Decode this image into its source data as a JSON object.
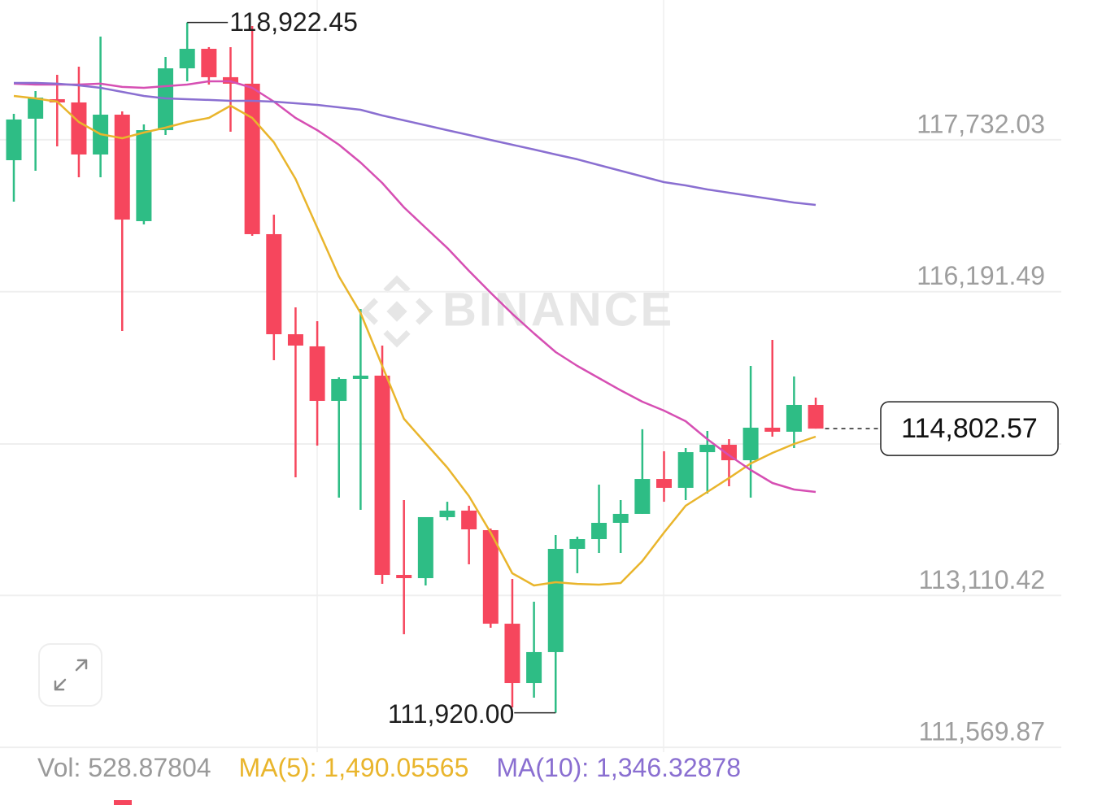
{
  "chart_data": {
    "type": "candlestick",
    "watermark": "BINANCE",
    "ylim": [
      111480,
      119150
    ],
    "yticks": [
      {
        "value": 117732.03,
        "label": "117,732.03"
      },
      {
        "value": 116191.49,
        "label": "116,191.49"
      },
      {
        "value": 113110.42,
        "label": "113,110.42"
      },
      {
        "value": 111569.87,
        "label": "111,569.87"
      }
    ],
    "grid": true,
    "up_color": "#2ebd85",
    "down_color": "#f6465d",
    "open": [
      117525,
      117946,
      118144,
      118111,
      117583,
      117987,
      116907,
      117830,
      118457,
      118655,
      118367,
      118301,
      116775,
      115760,
      115637,
      115084,
      115307,
      115340,
      113319,
      113286,
      113905,
      113971,
      113773,
      112824,
      112222,
      112536,
      113583,
      113682,
      113847,
      113938,
      114292,
      114202,
      114564,
      114639,
      114482,
      114812,
      114771,
      115043
    ],
    "high": [
      117995,
      118226,
      118391,
      118474,
      118779,
      118020,
      117888,
      118573,
      118922.45,
      118672,
      118672,
      118886,
      116973,
      116033,
      115892,
      115323,
      116016,
      115645,
      114078,
      113905,
      114061,
      114020,
      113789,
      113278,
      113047,
      113723,
      113707,
      114235,
      114078,
      114796,
      114573,
      114606,
      114779,
      114696,
      115439,
      115703,
      115332,
      115117
    ],
    "low": [
      117105,
      117418,
      117665,
      117352,
      117352,
      115793,
      116874,
      117781,
      118325,
      118292,
      117814,
      116758,
      115496,
      114309,
      114630,
      114103,
      113979,
      113228,
      112717,
      113212,
      113872,
      113426,
      112783,
      111975,
      112074,
      111920,
      113336,
      113542,
      113542,
      113938,
      114061,
      114078,
      114144,
      114218,
      114103,
      114721,
      114606,
      114802.57
    ],
    "close": [
      117938,
      118160,
      118111,
      117583,
      117987,
      116923,
      117830,
      118457,
      118655,
      118367,
      118301,
      116775,
      115760,
      115645,
      115084,
      115307,
      115340,
      113319,
      113286,
      113905,
      113971,
      113781,
      112824,
      112222,
      112536,
      113583,
      113682,
      113847,
      113938,
      114292,
      114202,
      114564,
      114639,
      114482,
      114812,
      114771,
      115043,
      114802.57
    ],
    "ma_lines": [
      {
        "color": "#e9b52c",
        "values": [
          118177,
          118152,
          118119,
          117913,
          117789,
          117748,
          117806,
          117855,
          117913,
          117954,
          118078,
          117954,
          117707,
          117336,
          116841,
          116346,
          115975,
          115439,
          114903,
          114655,
          114408,
          114119,
          113748,
          113336,
          113212,
          113245,
          113228,
          113220,
          113237,
          113459,
          113748,
          114020,
          114160,
          114301,
          114449,
          114556,
          114647,
          114721
        ]
      },
      {
        "color": "#d64fb3",
        "values": [
          118301,
          118292,
          118292,
          118292,
          118301,
          118268,
          118259,
          118276,
          118292,
          118325,
          118325,
          118259,
          118119,
          117954,
          117830,
          117682,
          117501,
          117294,
          117047,
          116841,
          116635,
          116404,
          116181,
          115967,
          115769,
          115579,
          115439,
          115315,
          115191,
          115076,
          114985,
          114878,
          114696,
          114532,
          114383,
          114251,
          114185,
          114160
        ]
      },
      {
        "color": "#8a6fd1",
        "values": [
          118309,
          118309,
          118301,
          118284,
          118259,
          118218,
          118177,
          118152,
          118144,
          118136,
          118127,
          118127,
          118119,
          118103,
          118086,
          118061,
          118037,
          117979,
          117929,
          117880,
          117830,
          117781,
          117731,
          117682,
          117633,
          117583,
          117534,
          117476,
          117418,
          117360,
          117303,
          117270,
          117228,
          117195,
          117162,
          117129,
          117096,
          117072
        ]
      }
    ],
    "annotations": {
      "high": {
        "value": 118922.45,
        "label": "118,922.45"
      },
      "low": {
        "value": 111920.0,
        "label": "111,920.00"
      },
      "last": {
        "value": 114802.57,
        "label": "114,802.57"
      }
    },
    "footer": [
      {
        "text": "Vol: 528.87804",
        "color": "#9a9a9a"
      },
      {
        "text": "MA(5): 1,490.05565",
        "color": "#e9b52c"
      },
      {
        "text": "MA(10): 1,346.32878",
        "color": "#8a6fd1"
      }
    ]
  }
}
